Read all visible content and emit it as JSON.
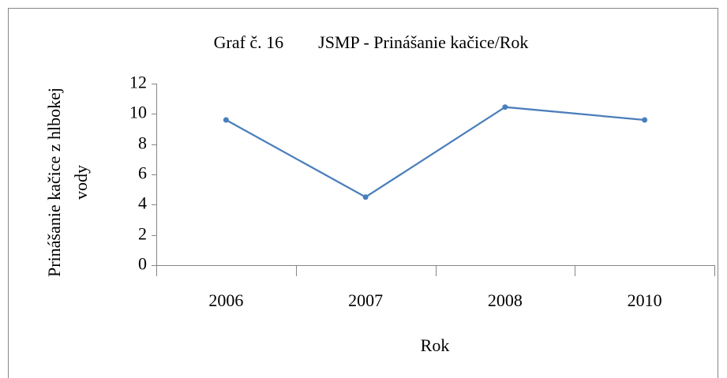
{
  "chart_data": {
    "type": "line",
    "title": "Graf č. 16        JSMP - Prinášanie kačice/Rok",
    "x_label": "Rok",
    "y_label": "Prinášanie kačice z hlbokej vody",
    "categories": [
      "2006",
      "2007",
      "2008",
      "2010"
    ],
    "series": [
      {
        "name": "JSMP",
        "color": "#4a7ebb",
        "values": [
          9.6,
          4.5,
          10.45,
          9.6
        ]
      }
    ],
    "ylim": [
      0,
      12
    ],
    "yticks": [
      0,
      2,
      4,
      6,
      8,
      10,
      12
    ],
    "grid": false,
    "legend": false
  }
}
